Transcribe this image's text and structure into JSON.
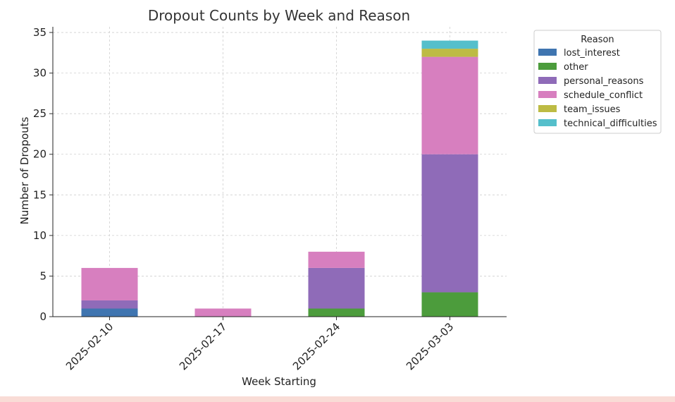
{
  "chart_data": {
    "type": "bar",
    "stacked": true,
    "title": "Dropout Counts by Week and Reason",
    "xlabel": "Week Starting",
    "ylabel": "Number of Dropouts",
    "ylim": [
      0,
      35.7
    ],
    "yticks": [
      0,
      5,
      10,
      15,
      20,
      25,
      30,
      35
    ],
    "grid": true,
    "legend_title": "Reason",
    "legend_position": "outside-top-right",
    "categories": [
      "2025-02-10",
      "2025-02-17",
      "2025-02-24",
      "2025-03-03"
    ],
    "series": [
      {
        "name": "lost_interest",
        "color": "#3f75b0",
        "values": [
          1,
          0,
          0,
          0
        ]
      },
      {
        "name": "other",
        "color": "#4c9c3c",
        "values": [
          0,
          0,
          1,
          3
        ]
      },
      {
        "name": "personal_reasons",
        "color": "#8f6bb8",
        "values": [
          1,
          0,
          5,
          17
        ]
      },
      {
        "name": "schedule_conflict",
        "color": "#d77fbf",
        "values": [
          4,
          1,
          2,
          12
        ]
      },
      {
        "name": "team_issues",
        "color": "#bdbb44",
        "values": [
          0,
          0,
          0,
          1
        ]
      },
      {
        "name": "technical_difficulties",
        "color": "#55bfcb",
        "values": [
          0,
          0,
          0,
          1
        ]
      }
    ]
  }
}
